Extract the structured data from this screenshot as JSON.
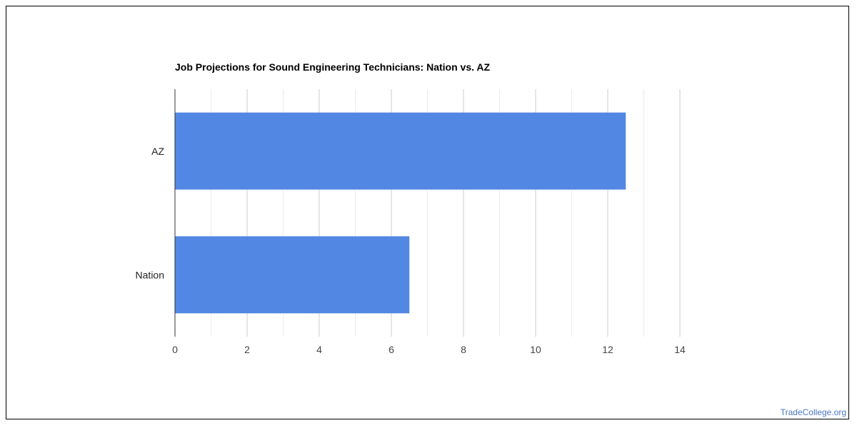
{
  "chart_data": {
    "type": "bar",
    "orientation": "horizontal",
    "title": "Job Projections for Sound Engineering Technicians: Nation vs. AZ",
    "categories": [
      "AZ",
      "Nation"
    ],
    "values": [
      12.5,
      6.5
    ],
    "xlim": [
      0,
      14
    ],
    "x_ticks": [
      "0",
      "2",
      "4",
      "6",
      "8",
      "10",
      "12",
      "14"
    ],
    "x_tick_values": [
      0,
      2,
      4,
      6,
      8,
      10,
      12,
      14
    ],
    "grid": true,
    "bar_color": "#5387e4"
  },
  "watermark": "TradeCollege.org"
}
